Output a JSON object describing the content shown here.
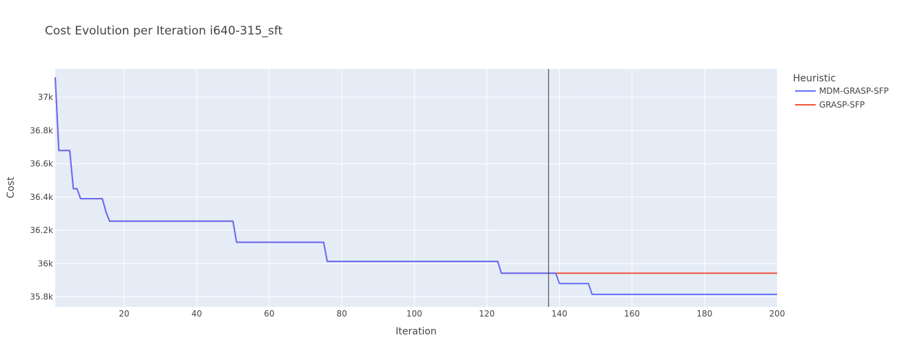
{
  "chart_data": {
    "type": "line",
    "title": "Cost Evolution per Iteration i640-315_sft",
    "xlabel": "Iteration",
    "ylabel": "Cost",
    "xlim": [
      1,
      200
    ],
    "ylim": [
      35740,
      37170
    ],
    "x_ticks": [
      20,
      40,
      60,
      80,
      100,
      120,
      140,
      160,
      180,
      200
    ],
    "y_ticks": [
      35800,
      36000,
      36200,
      36400,
      36600,
      36800,
      37000
    ],
    "y_tick_labels": [
      "35.8k",
      "36k",
      "36.2k",
      "36.4k",
      "36.6k",
      "36.8k",
      "37k"
    ],
    "grid": true,
    "legend": {
      "title": "Heuristic",
      "position": "top-right"
    },
    "vertical_marker_x": 137,
    "series": [
      {
        "name": "MDM-GRASP-SFP",
        "color": "#636efa",
        "points": [
          [
            1,
            37120
          ],
          [
            2,
            36680
          ],
          [
            5,
            36680
          ],
          [
            6,
            36450
          ],
          [
            7,
            36450
          ],
          [
            8,
            36390
          ],
          [
            14,
            36390
          ],
          [
            15,
            36310
          ],
          [
            16,
            36255
          ],
          [
            50,
            36255
          ],
          [
            51,
            36128
          ],
          [
            75,
            36128
          ],
          [
            76,
            36013
          ],
          [
            123,
            36013
          ],
          [
            124,
            35942
          ],
          [
            139,
            35942
          ],
          [
            140,
            35880
          ],
          [
            148,
            35880
          ],
          [
            149,
            35815
          ],
          [
            200,
            35815
          ]
        ]
      },
      {
        "name": "GRASP-SFP",
        "color": "#EF553B",
        "points": [
          [
            1,
            37120
          ],
          [
            2,
            36680
          ],
          [
            5,
            36680
          ],
          [
            6,
            36450
          ],
          [
            7,
            36450
          ],
          [
            8,
            36390
          ],
          [
            14,
            36390
          ],
          [
            15,
            36310
          ],
          [
            16,
            36255
          ],
          [
            50,
            36255
          ],
          [
            51,
            36128
          ],
          [
            75,
            36128
          ],
          [
            76,
            36013
          ],
          [
            123,
            36013
          ],
          [
            124,
            35942
          ],
          [
            200,
            35942
          ]
        ]
      }
    ]
  }
}
